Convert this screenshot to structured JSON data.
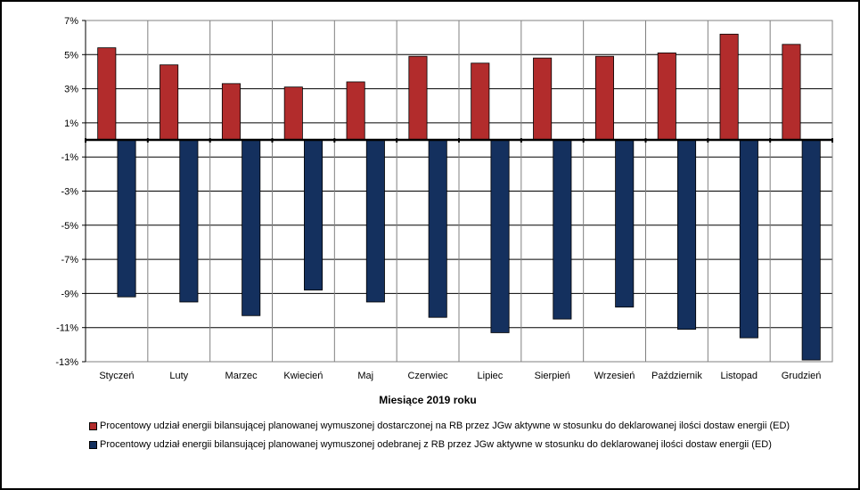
{
  "chart_data": {
    "type": "bar",
    "categories": [
      "Styczeń",
      "Luty",
      "Marzec",
      "Kwiecień",
      "Maj",
      "Czerwiec",
      "Lipiec",
      "Sierpień",
      "Wrzesień",
      "Październik",
      "Listopad",
      "Grudzień"
    ],
    "series": [
      {
        "name": "Procentowy udział energii bilansującej planowanej wymuszonej dostarczonej na RB przez JGw aktywne w stosunku do deklarowanej ilości dostaw energii (ED)",
        "color": "#B22C2C",
        "values": [
          5.4,
          4.4,
          3.3,
          3.1,
          3.4,
          4.9,
          4.5,
          4.8,
          4.9,
          5.1,
          6.2,
          5.6
        ]
      },
      {
        "name": "Procentowy udział energii bilansującej planowanej wymuszonej odebranej z RB przez JGw aktywne w stosunku do deklarowanej ilości dostaw energii (ED)",
        "color": "#14305E",
        "values": [
          -9.2,
          -9.5,
          -10.3,
          -8.8,
          -9.5,
          -10.4,
          -11.3,
          -10.5,
          -9.8,
          -11.1,
          -11.6,
          -12.9
        ]
      }
    ],
    "xlabel": "Miesiące 2019  roku",
    "ylabel": "",
    "ylim": [
      -13,
      7
    ],
    "yticks": [
      7,
      5,
      3,
      1,
      -1,
      -3,
      -5,
      -7,
      -9,
      -11,
      -13
    ],
    "ytick_labels": [
      "7%",
      "5%",
      "3%",
      "1%",
      "-1%",
      "-3%",
      "-5%",
      "-7%",
      "-9%",
      "-11%",
      "-13%"
    ],
    "grid": true,
    "legend_position": "bottom"
  }
}
